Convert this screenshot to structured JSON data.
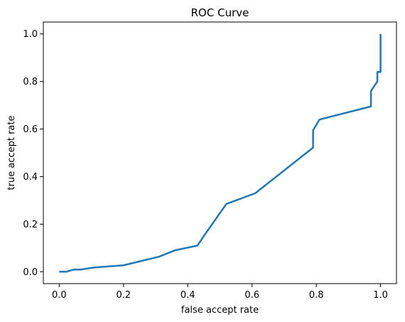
{
  "chart_data": {
    "type": "line",
    "title": "ROC Curve",
    "xlabel": "false accept rate",
    "ylabel": "true accept rate",
    "xlim": [
      -0.0495,
      1.0495
    ],
    "ylim": [
      -0.05,
      1.05
    ],
    "xticks": [
      0.0,
      0.2,
      0.4,
      0.6,
      0.8,
      1.0
    ],
    "yticks": [
      0.0,
      0.2,
      0.4,
      0.6,
      0.8,
      1.0
    ],
    "xtick_labels": [
      "0.0",
      "0.2",
      "0.4",
      "0.6",
      "0.8",
      "1.0"
    ],
    "ytick_labels": [
      "0.0",
      "0.2",
      "0.4",
      "0.6",
      "0.8",
      "1.0"
    ],
    "grid": false,
    "line_color": "#1f77b4",
    "series": [
      {
        "x": [
          0.0,
          0.022,
          0.044,
          0.066,
          0.11,
          0.2,
          0.31,
          0.36,
          0.43,
          0.45,
          0.52,
          0.61,
          0.79,
          0.79,
          0.81,
          0.97,
          0.97,
          0.99,
          0.99,
          1.0,
          1.0
        ],
        "y": [
          0.0,
          0.0,
          0.009,
          0.009,
          0.018,
          0.027,
          0.063,
          0.09,
          0.11,
          0.15,
          0.285,
          0.33,
          0.522,
          0.595,
          0.64,
          0.695,
          0.76,
          0.8,
          0.84,
          0.84,
          1.0
        ]
      }
    ]
  }
}
